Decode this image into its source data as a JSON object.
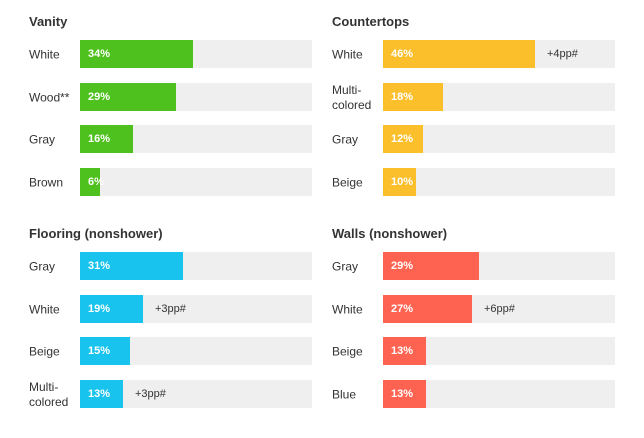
{
  "chart_data": [
    {
      "type": "bar",
      "title": "Vanity",
      "color": "#4fc11f",
      "categories": [
        "White",
        "Wood**",
        "Gray",
        "Brown"
      ],
      "values": [
        34,
        29,
        16,
        6
      ],
      "value_labels": [
        "34%",
        "29%",
        "16%",
        "6%"
      ],
      "deltas": [
        "",
        "",
        "",
        ""
      ],
      "xlim": [
        0,
        70
      ]
    },
    {
      "type": "bar",
      "title": "Countertops",
      "color": "#fbbf2c",
      "categories": [
        "White",
        "Multi-\ncolored",
        "Gray",
        "Beige"
      ],
      "values": [
        46,
        18,
        12,
        10
      ],
      "value_labels": [
        "46%",
        "18%",
        "12%",
        "10%"
      ],
      "deltas": [
        "+4pp#",
        "",
        "",
        ""
      ],
      "xlim": [
        0,
        70
      ]
    },
    {
      "type": "bar",
      "title": "Flooring (nonshower)",
      "color": "#18c3ed",
      "categories": [
        "Gray",
        "White",
        "Beige",
        "Multi-\ncolored"
      ],
      "values": [
        31,
        19,
        15,
        13
      ],
      "value_labels": [
        "31%",
        "19%",
        "15%",
        "13%"
      ],
      "deltas": [
        "",
        "+3pp#",
        "",
        "+3pp#"
      ],
      "xlim": [
        0,
        70
      ]
    },
    {
      "type": "bar",
      "title": "Walls (nonshower)",
      "color": "#fe6352",
      "categories": [
        "Gray",
        "White",
        "Beige",
        "Blue"
      ],
      "values": [
        29,
        27,
        13,
        13
      ],
      "value_labels": [
        "29%",
        "27%",
        "13%",
        "13%"
      ],
      "deltas": [
        "",
        "+6pp#",
        "",
        ""
      ],
      "xlim": [
        0,
        70
      ]
    }
  ]
}
